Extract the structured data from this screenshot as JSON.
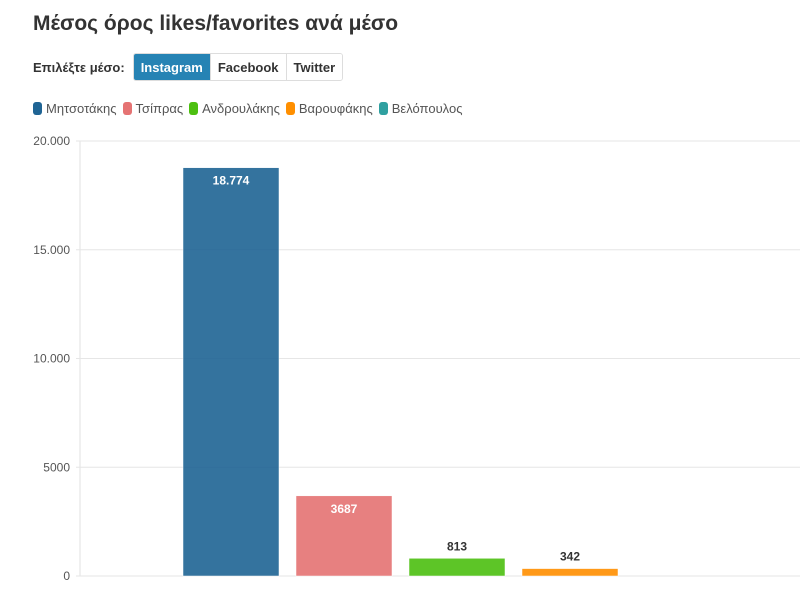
{
  "title": "Μέσος όρος likes/favorites ανά μέσο",
  "selector": {
    "label": "Επιλέξτε μέσο:",
    "options": [
      "Instagram",
      "Facebook",
      "Twitter"
    ],
    "active": "Instagram"
  },
  "chart_data": {
    "type": "bar",
    "title": "Μέσος όρος likes/favorites ανά μέσο",
    "categories": [
      "Μητσοτάκης",
      "Τσίπρας",
      "Ανδρουλάκης",
      "Βαρουφάκης",
      "Βελόπουλος"
    ],
    "values": [
      18774,
      3687,
      813,
      342,
      null
    ],
    "labels": [
      "18.774",
      "3687",
      "813",
      "342",
      ""
    ],
    "colors": [
      "#1f6494",
      "#e57373",
      "#4cbf10",
      "#ff8f00",
      "#2fa0a0"
    ],
    "ylim": [
      0,
      20000
    ],
    "yticks": [
      0,
      5000,
      10000,
      15000,
      20000
    ],
    "ytick_labels": [
      "0",
      "5000",
      "10.000",
      "15.000",
      "20.000"
    ],
    "grid": true,
    "legend": "top-left"
  }
}
